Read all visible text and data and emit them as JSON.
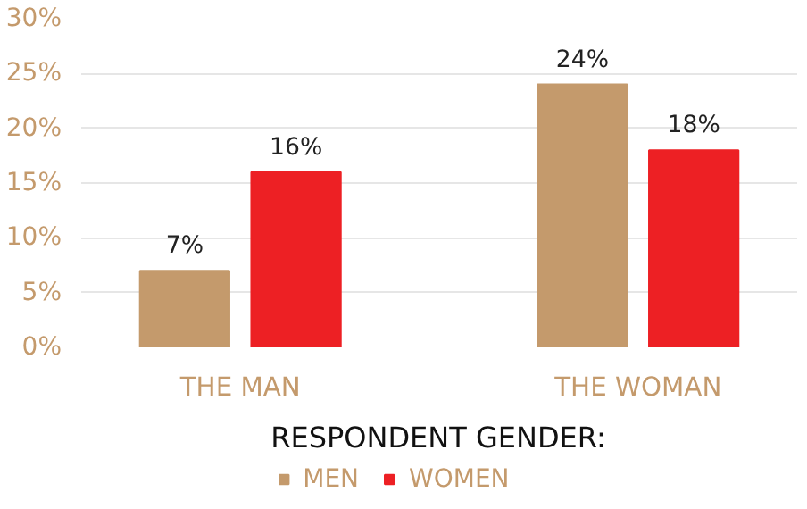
{
  "chart_data": {
    "type": "bar",
    "categories": [
      "THE MAN",
      "THE WOMAN"
    ],
    "series": [
      {
        "name": "MEN",
        "color": "#c49a6c",
        "values": [
          7,
          24
        ],
        "value_labels": [
          "7%",
          "24%"
        ]
      },
      {
        "name": "WOMEN",
        "color": "#ed2024",
        "values": [
          16,
          18
        ],
        "value_labels": [
          "16%",
          "18%"
        ]
      }
    ],
    "legend_title": "RESPONDENT GENDER:",
    "legend": "bottom",
    "grid": "y",
    "ylim": [
      0,
      30
    ],
    "yticks": [
      {
        "value": 0,
        "label": "0%"
      },
      {
        "value": 5,
        "label": "5%"
      },
      {
        "value": 10,
        "label": "10%"
      },
      {
        "value": 15,
        "label": "15%"
      },
      {
        "value": 20,
        "label": "20%"
      },
      {
        "value": 25,
        "label": "25%"
      },
      {
        "value": 30,
        "label": "30%"
      }
    ]
  }
}
